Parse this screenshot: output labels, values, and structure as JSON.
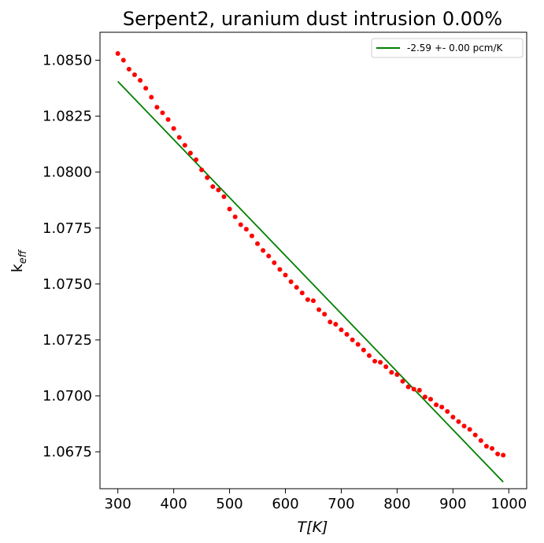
{
  "chart_data": {
    "type": "scatter",
    "title": "Serpent2, uranium dust intrusion  0.00%",
    "xlabel": "T[K]",
    "ylabel_main": "k",
    "ylabel_sub": "eff",
    "xlim": [
      268,
      1032
    ],
    "ylim": [
      1.06585,
      1.08625
    ],
    "xticks": [
      300,
      400,
      500,
      600,
      700,
      800,
      900,
      1000
    ],
    "xtick_labels": [
      "300",
      "400",
      "500",
      "600",
      "700",
      "800",
      "900",
      "1000"
    ],
    "yticks": [
      1.0675,
      1.07,
      1.0725,
      1.075,
      1.0775,
      1.08,
      1.0825,
      1.085
    ],
    "ytick_labels": [
      "1.0675",
      "1.0700",
      "1.0725",
      "1.0750",
      "1.0775",
      "1.0800",
      "1.0825",
      "1.0850"
    ],
    "grid": false,
    "legend_position": "top-right",
    "series": [
      {
        "kind": "points",
        "color": "#ff0000",
        "x": [
          300,
          310,
          320,
          330,
          340,
          350,
          360,
          370,
          380,
          390,
          400,
          410,
          420,
          430,
          440,
          450,
          460,
          470,
          480,
          490,
          500,
          510,
          520,
          530,
          540,
          550,
          560,
          570,
          580,
          590,
          600,
          610,
          620,
          630,
          640,
          650,
          660,
          670,
          680,
          690,
          700,
          710,
          720,
          730,
          740,
          750,
          760,
          770,
          780,
          790,
          800,
          810,
          820,
          830,
          840,
          850,
          860,
          870,
          880,
          890,
          900,
          910,
          920,
          930,
          940,
          950,
          960,
          970,
          980,
          990
        ],
        "y": [
          1.0853,
          1.085,
          1.0846,
          1.08435,
          1.0841,
          1.08375,
          1.08335,
          1.0829,
          1.08265,
          1.08235,
          1.08195,
          1.08155,
          1.0812,
          1.08085,
          1.08055,
          1.0801,
          1.07975,
          1.07935,
          1.0792,
          1.0789,
          1.07835,
          1.078,
          1.07765,
          1.07745,
          1.07715,
          1.0768,
          1.0765,
          1.07625,
          1.07595,
          1.07565,
          1.0754,
          1.0751,
          1.07485,
          1.0746,
          1.0743,
          1.07425,
          1.07385,
          1.07365,
          1.0733,
          1.0732,
          1.07295,
          1.07275,
          1.0725,
          1.0723,
          1.07205,
          1.0718,
          1.07155,
          1.0715,
          1.0713,
          1.07105,
          1.07095,
          1.07065,
          1.0704,
          1.0703,
          1.07025,
          1.06995,
          1.06985,
          1.0696,
          1.0695,
          1.0693,
          1.06905,
          1.06885,
          1.06865,
          1.0685,
          1.06825,
          1.068,
          1.06775,
          1.06765,
          1.0674,
          1.06735
        ]
      },
      {
        "kind": "fit-line",
        "name": "-2.59 +- 0.00 pcm/K",
        "color": "#008000",
        "x": [
          300,
          990
        ],
        "y": [
          1.08405,
          1.06615
        ]
      }
    ]
  }
}
